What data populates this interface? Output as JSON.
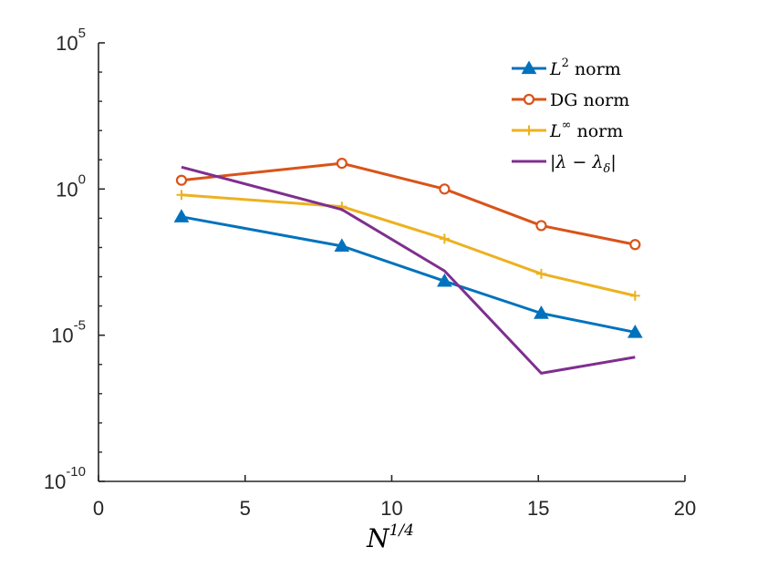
{
  "chart_data": {
    "type": "line",
    "title": "",
    "xlabel": "N^{1/4}",
    "xlabel_base": "N",
    "xlabel_sup": "1/4",
    "ylabel": "",
    "yscale": "log",
    "xlim": [
      0,
      20
    ],
    "ylim_exponent": [
      -10,
      5
    ],
    "x_ticks": [
      0,
      5,
      10,
      15,
      20
    ],
    "x_tick_labels": [
      "0",
      "5",
      "10",
      "15",
      "20"
    ],
    "y_ticks": [
      {
        "base": "10",
        "exp": "5",
        "value": 5
      },
      {
        "base": "10",
        "exp": "0",
        "value": 0
      },
      {
        "base": "10",
        "exp": "-5",
        "value": -5
      },
      {
        "base": "10",
        "exp": "-10",
        "value": -10
      }
    ],
    "grid": false,
    "legend_position": "top-right",
    "series": [
      {
        "name": "L^2 norm",
        "legend": {
          "math": "L",
          "sup": "2",
          "text": "norm"
        },
        "color": "#0072BD",
        "marker": "triangle",
        "x": [
          2.83,
          8.3,
          11.8,
          15.1,
          18.3
        ],
        "log10_y": [
          -0.95,
          -1.95,
          -3.15,
          -4.25,
          -4.9
        ]
      },
      {
        "name": "DG norm",
        "legend": {
          "math": "",
          "sup": "",
          "text": "DG norm"
        },
        "color": "#D95319",
        "marker": "circle",
        "x": [
          2.83,
          8.3,
          11.8,
          15.1,
          18.3
        ],
        "log10_y": [
          0.3,
          0.88,
          0.0,
          -1.25,
          -1.9
        ]
      },
      {
        "name": "L^∞ norm",
        "legend": {
          "math": "L",
          "sup": "∞",
          "text": "norm"
        },
        "color": "#EDB120",
        "marker": "plus",
        "x": [
          2.83,
          8.3,
          11.8,
          15.1,
          18.3
        ],
        "log10_y": [
          -0.2,
          -0.6,
          -1.7,
          -2.9,
          -3.65
        ]
      },
      {
        "name": "|λ − λδ|",
        "legend": {
          "math": "|λ − λ",
          "sub": "δ",
          "tail": "|"
        },
        "color": "#7E2F8E",
        "marker": "none",
        "x": [
          2.83,
          8.3,
          11.8,
          15.1,
          18.3
        ],
        "log10_y": [
          0.75,
          -0.7,
          -2.8,
          -6.3,
          -5.75
        ]
      }
    ]
  }
}
